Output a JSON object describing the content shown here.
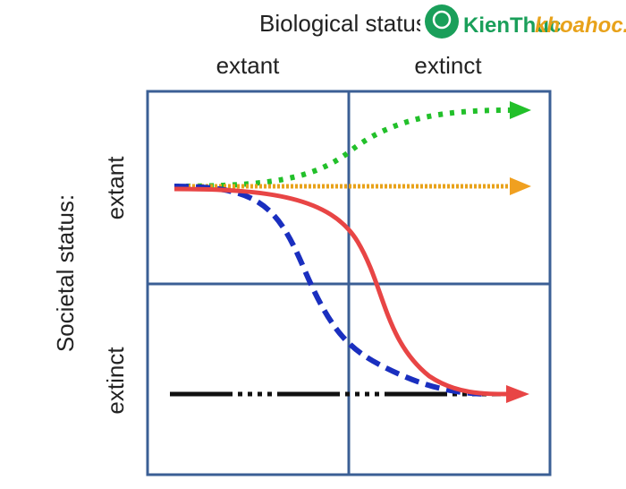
{
  "title": "Biological status:",
  "watermark": {
    "brand": "KienThuc",
    "site": "khoahoc.vn"
  },
  "columns": [
    "extant",
    "extinct"
  ],
  "rows": [
    "extant",
    "extinct"
  ],
  "row_axis_label": "Societal status:"
}
